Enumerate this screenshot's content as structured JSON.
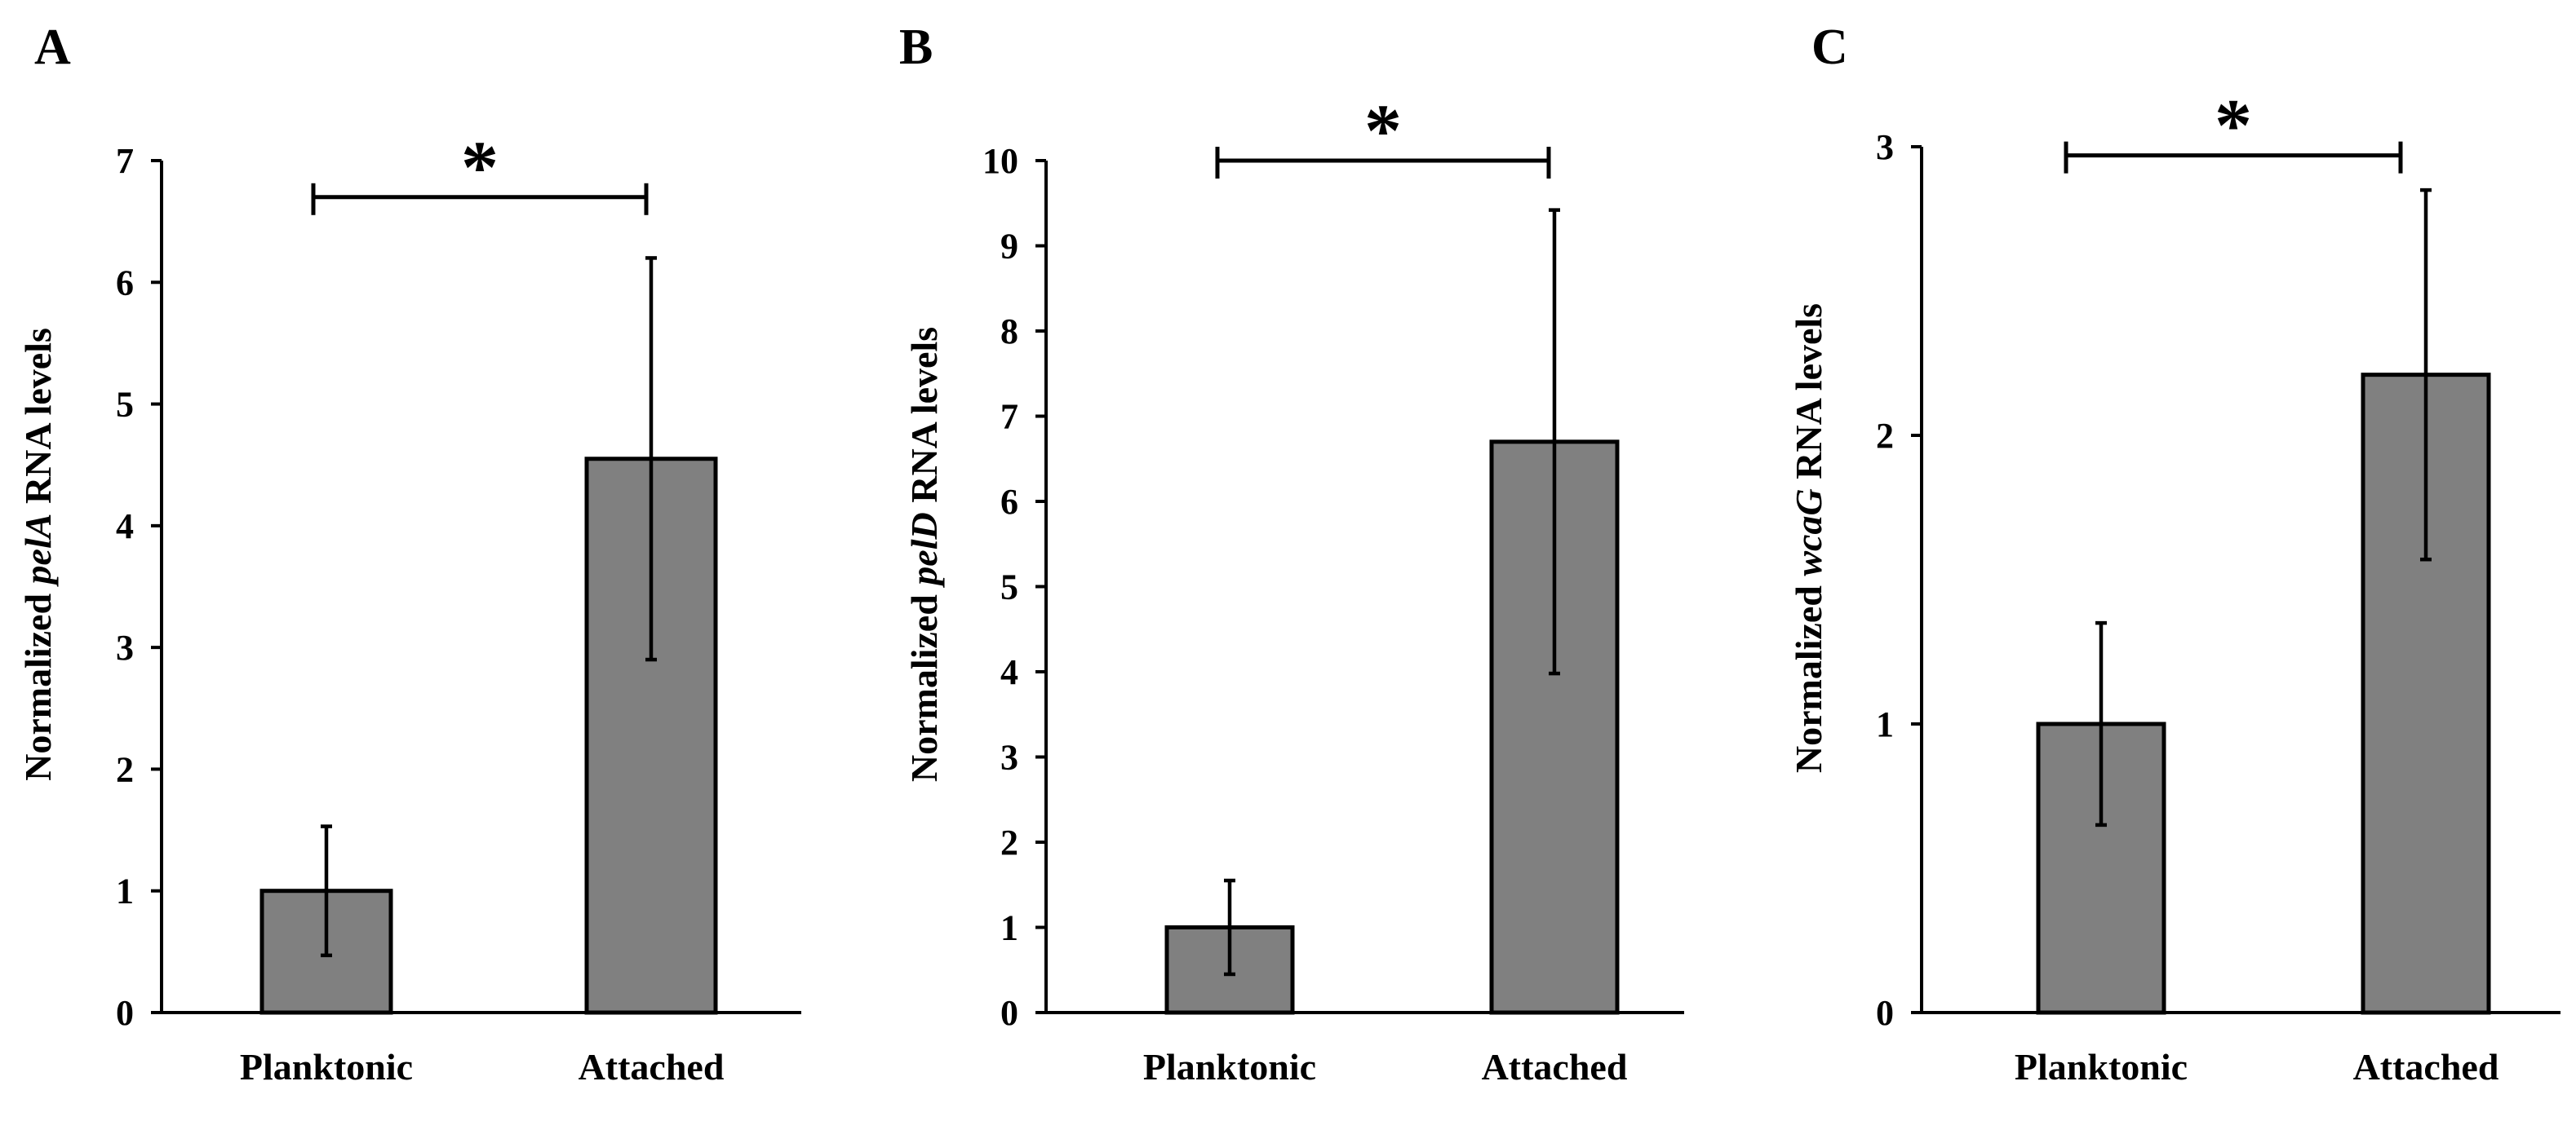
{
  "chart_data": [
    {
      "type": "bar",
      "panel": "A",
      "categories": [
        "Planktonic",
        "Attached"
      ],
      "values": [
        1.0,
        4.55
      ],
      "error": [
        0.53,
        1.65
      ],
      "ylim": [
        0,
        7
      ],
      "yticks": [
        0,
        1,
        2,
        3,
        4,
        5,
        6,
        7
      ],
      "ylabel_prefix": "Normalized ",
      "ylabel_gene": "pelA",
      "ylabel_suffix": " RNA levels",
      "xlabel": "",
      "significance": {
        "label": "*",
        "y": 6.7
      }
    },
    {
      "type": "bar",
      "panel": "B",
      "categories": [
        "Planktonic",
        "Attached"
      ],
      "values": [
        1.0,
        6.7
      ],
      "error": [
        0.55,
        2.72
      ],
      "ylim": [
        0,
        10
      ],
      "yticks": [
        0,
        1,
        2,
        3,
        4,
        5,
        6,
        7,
        8,
        9,
        10
      ],
      "ylabel_prefix": "Normalized ",
      "ylabel_gene": "pelD",
      "ylabel_suffix": " RNA levels",
      "xlabel": "",
      "significance": {
        "label": "*",
        "y": 10
      }
    },
    {
      "type": "bar",
      "panel": "C",
      "categories": [
        "Planktonic",
        "Attached"
      ],
      "values": [
        1.0,
        2.21
      ],
      "error": [
        0.35,
        0.64
      ],
      "ylim": [
        0,
        3
      ],
      "yticks": [
        0,
        1,
        2,
        3
      ],
      "ylabel_prefix": "Normalized ",
      "ylabel_gene": "wcaG",
      "ylabel_suffix": " RNA levels",
      "xlabel": "",
      "significance": {
        "label": "*",
        "y": 2.97
      }
    }
  ]
}
